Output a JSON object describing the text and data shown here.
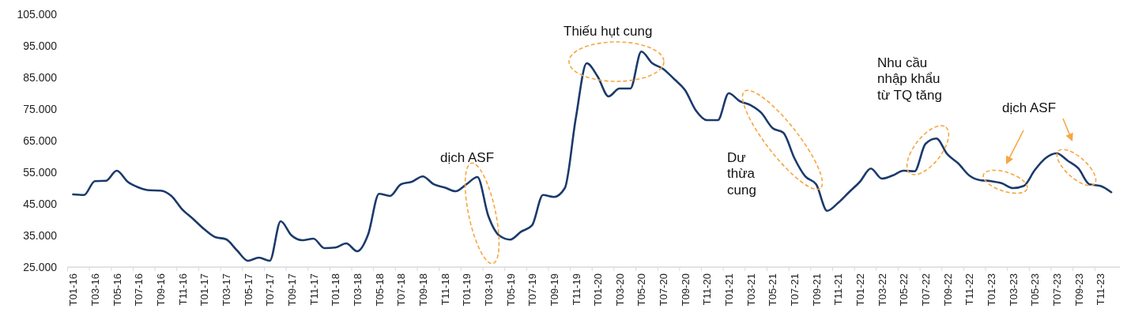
{
  "chart_data": {
    "type": "line",
    "categories": [
      "T01-16",
      null,
      "T03-16",
      null,
      "T05-16",
      null,
      "T07-16",
      null,
      "T09-16",
      null,
      "T11-16",
      null,
      "T01-17",
      null,
      "T03-17",
      null,
      "T05-17",
      null,
      "T07-17",
      null,
      "T09-17",
      null,
      "T11-17",
      null,
      "T01-18",
      null,
      "T03-18",
      null,
      "T05-18",
      null,
      "T07-18",
      null,
      "T09-18",
      null,
      "T11-18",
      null,
      "T01-19",
      null,
      "T03-19",
      null,
      "T05-19",
      null,
      "T07-19",
      null,
      "T09-19",
      null,
      "T11-19",
      null,
      "T01-20",
      null,
      "T03-20",
      null,
      "T05-20",
      null,
      "T07-20",
      null,
      "T09-20",
      null,
      "T11-20",
      null,
      "T01-21",
      null,
      "T03-21",
      null,
      "T05-21",
      null,
      "T07-21",
      null,
      "T09-21",
      null,
      "T11-21",
      null,
      "T01-22",
      null,
      "T03-22",
      null,
      "T05-22",
      null,
      "T07-22",
      null,
      "T09-22",
      null,
      "T11-22",
      null,
      "T01-23",
      null,
      "T03-23",
      null,
      "T05-23",
      null,
      "T07-23",
      null,
      "T09-23",
      null,
      "T11-23",
      null
    ],
    "series": [
      {
        "color": "#1b3a6b",
        "values": [
          48000,
          47800,
          52200,
          52300,
          55500,
          52000,
          50200,
          49300,
          49200,
          47500,
          43200,
          40200,
          37000,
          34500,
          33800,
          30300,
          27000,
          28000,
          27000,
          39500,
          35000,
          33500,
          34000,
          31000,
          31200,
          32500,
          30000,
          35300,
          48200,
          47500,
          51200,
          52000,
          53700,
          51200,
          50200,
          49000,
          51200,
          53500,
          41200,
          35000,
          33700,
          36200,
          38200,
          47800,
          47200,
          50000,
          72000,
          89500,
          85300,
          79000,
          81500,
          81500,
          93200,
          89500,
          87700,
          84500,
          81000,
          74500,
          71500,
          71500,
          80000,
          77500,
          76200,
          73700,
          69000,
          67500,
          59500,
          53700,
          51200,
          42800,
          45300,
          48700,
          52000,
          56200,
          53000,
          54000,
          55500,
          55300,
          64000,
          65700,
          60700,
          57800,
          54000,
          52500,
          52200,
          51500,
          50000,
          50700,
          55700,
          59500,
          61000,
          58700,
          56200,
          51200,
          50700,
          48700
        ]
      }
    ],
    "ylim": [
      25000,
      105000
    ],
    "yticks": [
      {
        "value": 25000,
        "label": "25.000"
      },
      {
        "value": 35000,
        "label": "35.000"
      },
      {
        "value": 45000,
        "label": "45.000"
      },
      {
        "value": 55000,
        "label": "55.000"
      },
      {
        "value": 65000,
        "label": "65.000"
      },
      {
        "value": 75000,
        "label": "75.000"
      },
      {
        "value": 85000,
        "label": "85.000"
      },
      {
        "value": 95000,
        "label": "95.000"
      },
      {
        "value": 105000,
        "label": "105.000"
      }
    ],
    "marker": "none",
    "line_style": "solid",
    "annotations": [
      "dịch ASF",
      "Thiếu hụt cung",
      "Dư\nthừa\ncung",
      "Nhu cầu\nnhập khẩu\ntừ TQ tăng",
      "dịch ASF"
    ]
  }
}
